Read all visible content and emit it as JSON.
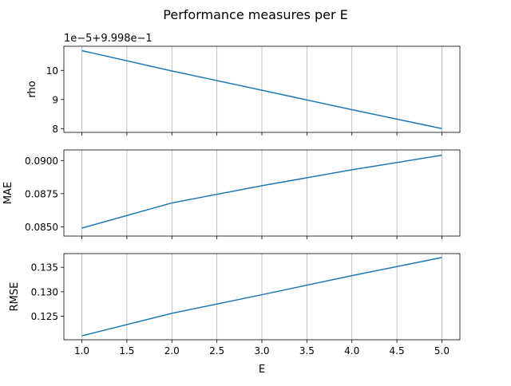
{
  "chart_data": {
    "type": "line",
    "title": "Performance measures per E",
    "xlabel": "E",
    "x": [
      1.0,
      2.0,
      3.0,
      4.0,
      5.0
    ],
    "xlim": [
      0.8,
      5.2
    ],
    "xticks": [
      1.0,
      1.5,
      2.0,
      2.5,
      3.0,
      3.5,
      4.0,
      4.5,
      5.0
    ],
    "xtick_labels": [
      "1.0",
      "1.5",
      "2.0",
      "2.5",
      "3.0",
      "3.5",
      "4.0",
      "4.5",
      "5.0"
    ],
    "grid": "vertical",
    "line_color": "#1f77b4",
    "panels": [
      {
        "ylabel": "rho",
        "offset_label": "1e−5+9.998e−1",
        "ylim": [
          7.87,
          10.83
        ],
        "yticks": [
          8,
          9,
          10
        ],
        "ytick_labels": [
          "8",
          "9",
          "10"
        ],
        "values": [
          10.68,
          9.98,
          9.32,
          8.65,
          8.0
        ]
      },
      {
        "ylabel": "MAE",
        "offset_label": "",
        "ylim": [
          0.0843,
          0.0908
        ],
        "yticks": [
          0.085,
          0.0875,
          0.09
        ],
        "ytick_labels": [
          "0.0850",
          "0.0875",
          "0.0900"
        ],
        "values": [
          0.0849,
          0.0868,
          0.0881,
          0.0893,
          0.0904
        ]
      },
      {
        "ylabel": "RMSE",
        "offset_label": "",
        "ylim": [
          0.1202,
          0.1378
        ],
        "yticks": [
          0.125,
          0.13,
          0.135
        ],
        "ytick_labels": [
          "0.125",
          "0.130",
          "0.135"
        ],
        "values": [
          0.121,
          0.1256,
          0.1294,
          0.1333,
          0.137
        ]
      }
    ]
  }
}
